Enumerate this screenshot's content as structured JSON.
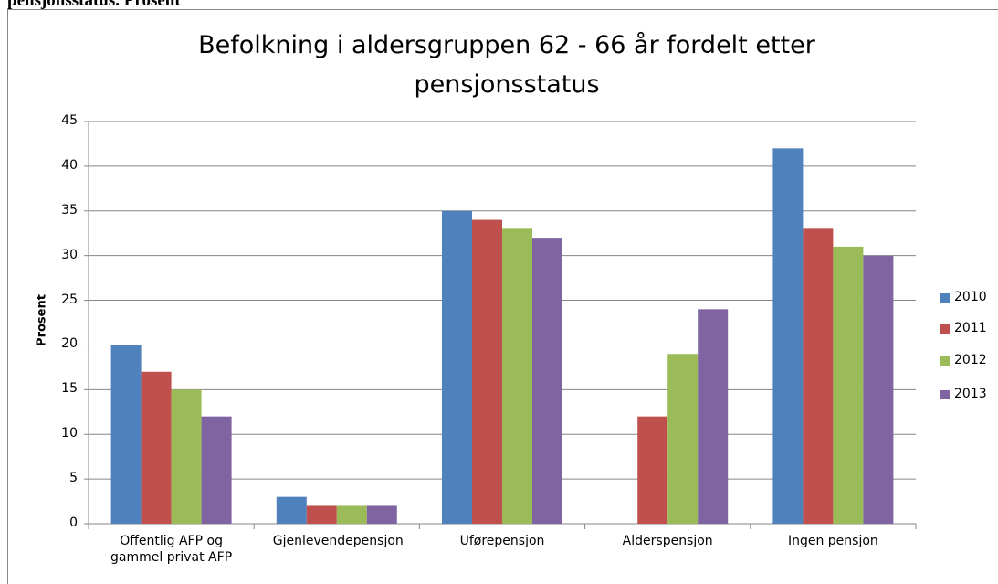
{
  "header": {
    "text": "pensjonsstatus. Prosent"
  },
  "chart_data": {
    "type": "bar",
    "title": "Befolkning i aldersgruppen 62 - 66 år fordelt etter pensjonsstatus",
    "y_label": "Prosent",
    "categories": [
      "Offentlig AFP og gammel privat AFP",
      "Gjenlevendepensjon",
      "Uførepensjon",
      "Alderspensjon",
      "Ingen pensjon"
    ],
    "series": [
      {
        "name": "2010",
        "color": "#4f81bd",
        "values": [
          20,
          3,
          35,
          null,
          42
        ]
      },
      {
        "name": "2011",
        "color": "#c0504d",
        "values": [
          17,
          2,
          34,
          12,
          33
        ]
      },
      {
        "name": "2012",
        "color": "#9bbb59",
        "values": [
          15,
          2,
          33,
          19,
          31
        ]
      },
      {
        "name": "2013",
        "color": "#8064a2",
        "values": [
          12,
          2,
          32,
          24,
          30
        ]
      }
    ],
    "ylim": [
      0,
      45
    ],
    "yticks": [
      0,
      5,
      10,
      15,
      20,
      25,
      30,
      35,
      40,
      45
    ],
    "grid": true,
    "legend": "right"
  }
}
